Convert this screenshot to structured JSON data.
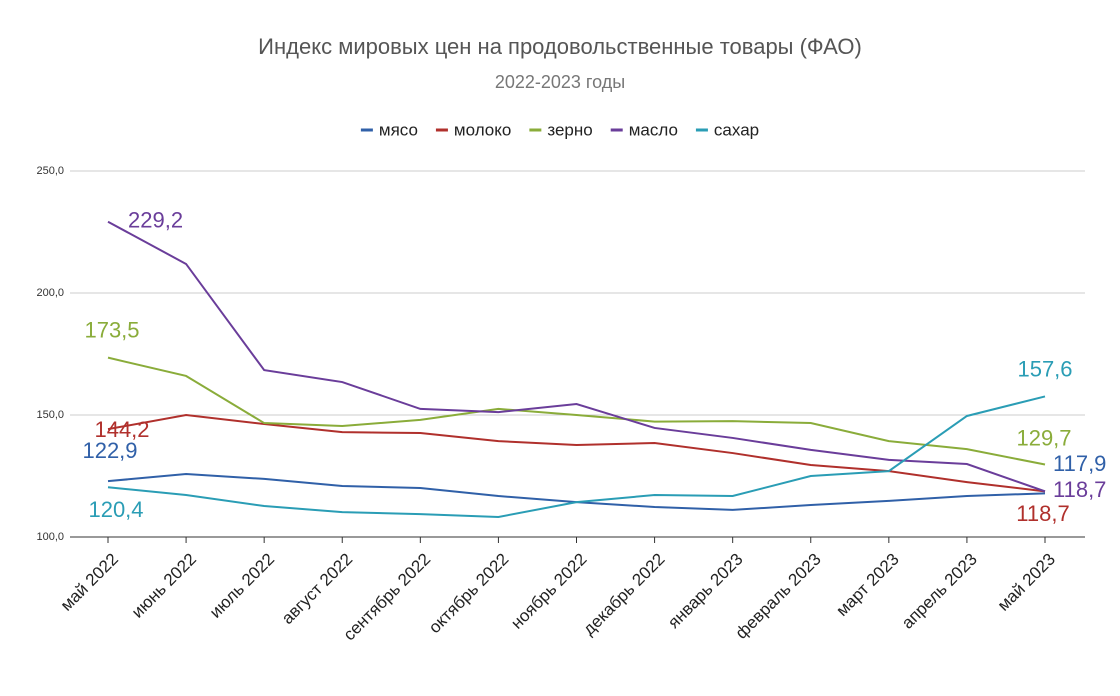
{
  "chart_data": {
    "type": "line",
    "title": "Индекс мировых цен на продовольственные товары (ФАО)",
    "subtitle": "2022-2023 годы",
    "categories": [
      "май 2022",
      "июнь 2022",
      "июль 2022",
      "август 2022",
      "сентябрь 2022",
      "октябрь 2022",
      "ноябрь 2022",
      "декабрь 2022",
      "январь 2023",
      "февраль 2023",
      "март 2023",
      "апрель 2023",
      "май 2023"
    ],
    "ylim": [
      100,
      250
    ],
    "yticks": [
      {
        "value": 100,
        "label": "100,0"
      },
      {
        "value": 150,
        "label": "150,0"
      },
      {
        "value": 200,
        "label": "200,0"
      },
      {
        "value": 250,
        "label": "250,0"
      }
    ],
    "grid": true,
    "legend": "top",
    "series": [
      {
        "name": "мясо",
        "color": "#3060a8",
        "values": [
          122.9,
          125.8,
          123.8,
          120.9,
          120.1,
          116.8,
          114.3,
          112.3,
          111.1,
          113.1,
          114.8,
          116.8,
          117.9
        ],
        "value_labels": [
          "122,9",
          null,
          null,
          null,
          null,
          null,
          null,
          null,
          null,
          null,
          null,
          null,
          "117,9"
        ]
      },
      {
        "name": "молоко",
        "color": "#b0302c",
        "values": [
          144.2,
          150.0,
          146.3,
          143.0,
          142.6,
          139.3,
          137.7,
          138.5,
          134.4,
          129.5,
          127.0,
          122.5,
          118.7
        ],
        "value_labels": [
          "144,2",
          null,
          null,
          null,
          null,
          null,
          null,
          null,
          null,
          null,
          null,
          null,
          "118,7"
        ]
      },
      {
        "name": "зерно",
        "color": "#8aac3a",
        "values": [
          173.5,
          166.0,
          146.7,
          145.5,
          148.0,
          152.5,
          150.0,
          147.3,
          147.5,
          146.7,
          139.3,
          136.0,
          129.7
        ],
        "value_labels": [
          "173,5",
          null,
          null,
          null,
          null,
          null,
          null,
          null,
          null,
          null,
          null,
          null,
          "129,7"
        ]
      },
      {
        "name": "масло",
        "color": "#6a3d9a",
        "values": [
          229.2,
          211.9,
          168.4,
          163.5,
          152.5,
          151.2,
          154.5,
          144.7,
          140.6,
          135.7,
          131.6,
          129.9,
          118.7
        ],
        "value_labels": [
          "229,2",
          null,
          null,
          null,
          null,
          null,
          null,
          null,
          null,
          null,
          null,
          null,
          "118,7"
        ]
      },
      {
        "name": "сахар",
        "color": "#2a9db5",
        "values": [
          120.4,
          117.2,
          112.7,
          110.2,
          109.4,
          108.2,
          114.3,
          117.2,
          116.8,
          125.0,
          127.0,
          149.6,
          157.6
        ],
        "value_labels": [
          "120,4",
          null,
          null,
          null,
          null,
          null,
          null,
          null,
          null,
          null,
          null,
          null,
          "157,6"
        ]
      }
    ]
  }
}
